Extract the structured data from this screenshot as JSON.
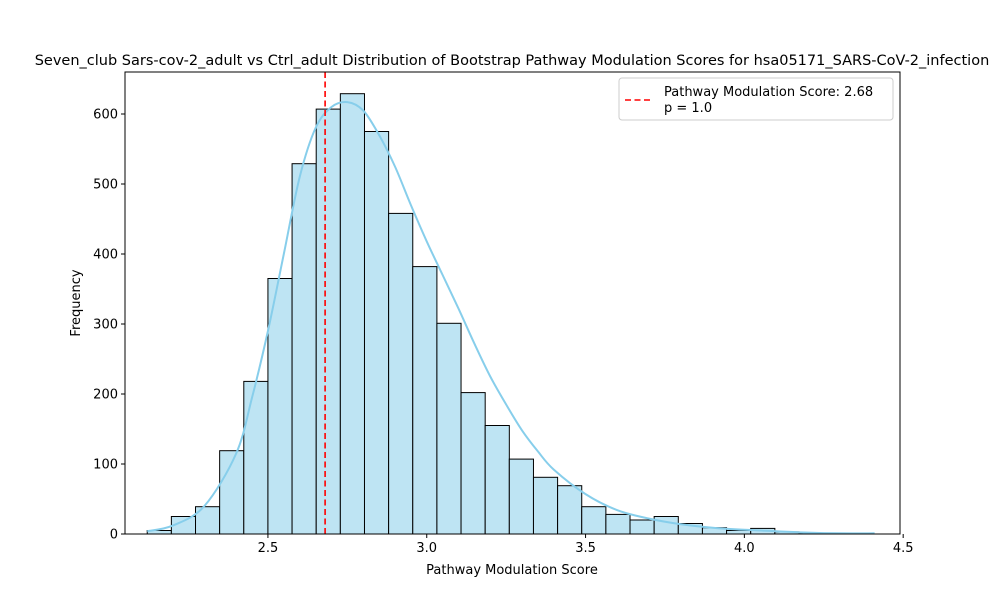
{
  "chart_data": {
    "type": "bar",
    "title": "Seven_club Sars-cov-2_adult vs Ctrl_adult Distribution of Bootstrap Pathway Modulation Scores for hsa05171_SARS-CoV-2_infection",
    "xlabel": "Pathway Modulation Score",
    "ylabel": "Frequency",
    "xlim": [
      2.05,
      4.49
    ],
    "ylim": [
      0,
      660
    ],
    "xticks": [
      2.5,
      3.0,
      3.5,
      4.0,
      4.5
    ],
    "xtick_labels": [
      "2.5",
      "3.0",
      "3.5",
      "4.0",
      "4.5"
    ],
    "yticks": [
      0,
      100,
      200,
      300,
      400,
      500,
      600
    ],
    "ytick_labels": [
      "0",
      "100",
      "200",
      "300",
      "400",
      "500",
      "600"
    ],
    "bin_start": 2.12,
    "bin_width": 0.076,
    "values": [
      5,
      25,
      39,
      119,
      218,
      365,
      529,
      607,
      629,
      575,
      458,
      382,
      301,
      202,
      155,
      107,
      81,
      69,
      39,
      28,
      20,
      25,
      15,
      9,
      5,
      8,
      3,
      1,
      1,
      1
    ],
    "bar_color": "#bee4f3",
    "bar_edge": "#000000",
    "kde": {
      "color": "#87ceeb",
      "x": [
        2.12,
        2.2,
        2.3,
        2.4,
        2.45,
        2.5,
        2.55,
        2.6,
        2.65,
        2.7,
        2.75,
        2.8,
        2.85,
        2.9,
        2.95,
        3.0,
        3.05,
        3.1,
        3.15,
        3.2,
        3.25,
        3.3,
        3.35,
        3.4,
        3.5,
        3.6,
        3.7,
        3.8,
        3.9,
        4.0,
        4.1,
        4.2,
        4.3,
        4.41
      ],
      "y": [
        4,
        12,
        40,
        115,
        195,
        290,
        400,
        510,
        580,
        610,
        617,
        605,
        570,
        525,
        470,
        418,
        370,
        322,
        272,
        225,
        185,
        148,
        118,
        92,
        57,
        34,
        22,
        14,
        9,
        6,
        4,
        2,
        1,
        1
      ]
    },
    "reference_line": {
      "x": 2.68,
      "color": "#ff0000",
      "style": "dashed"
    },
    "legend": {
      "placement": "top-right",
      "line1": "Pathway Modulation Score: 2.68",
      "line2": "p = 1.0"
    },
    "grid": false
  }
}
